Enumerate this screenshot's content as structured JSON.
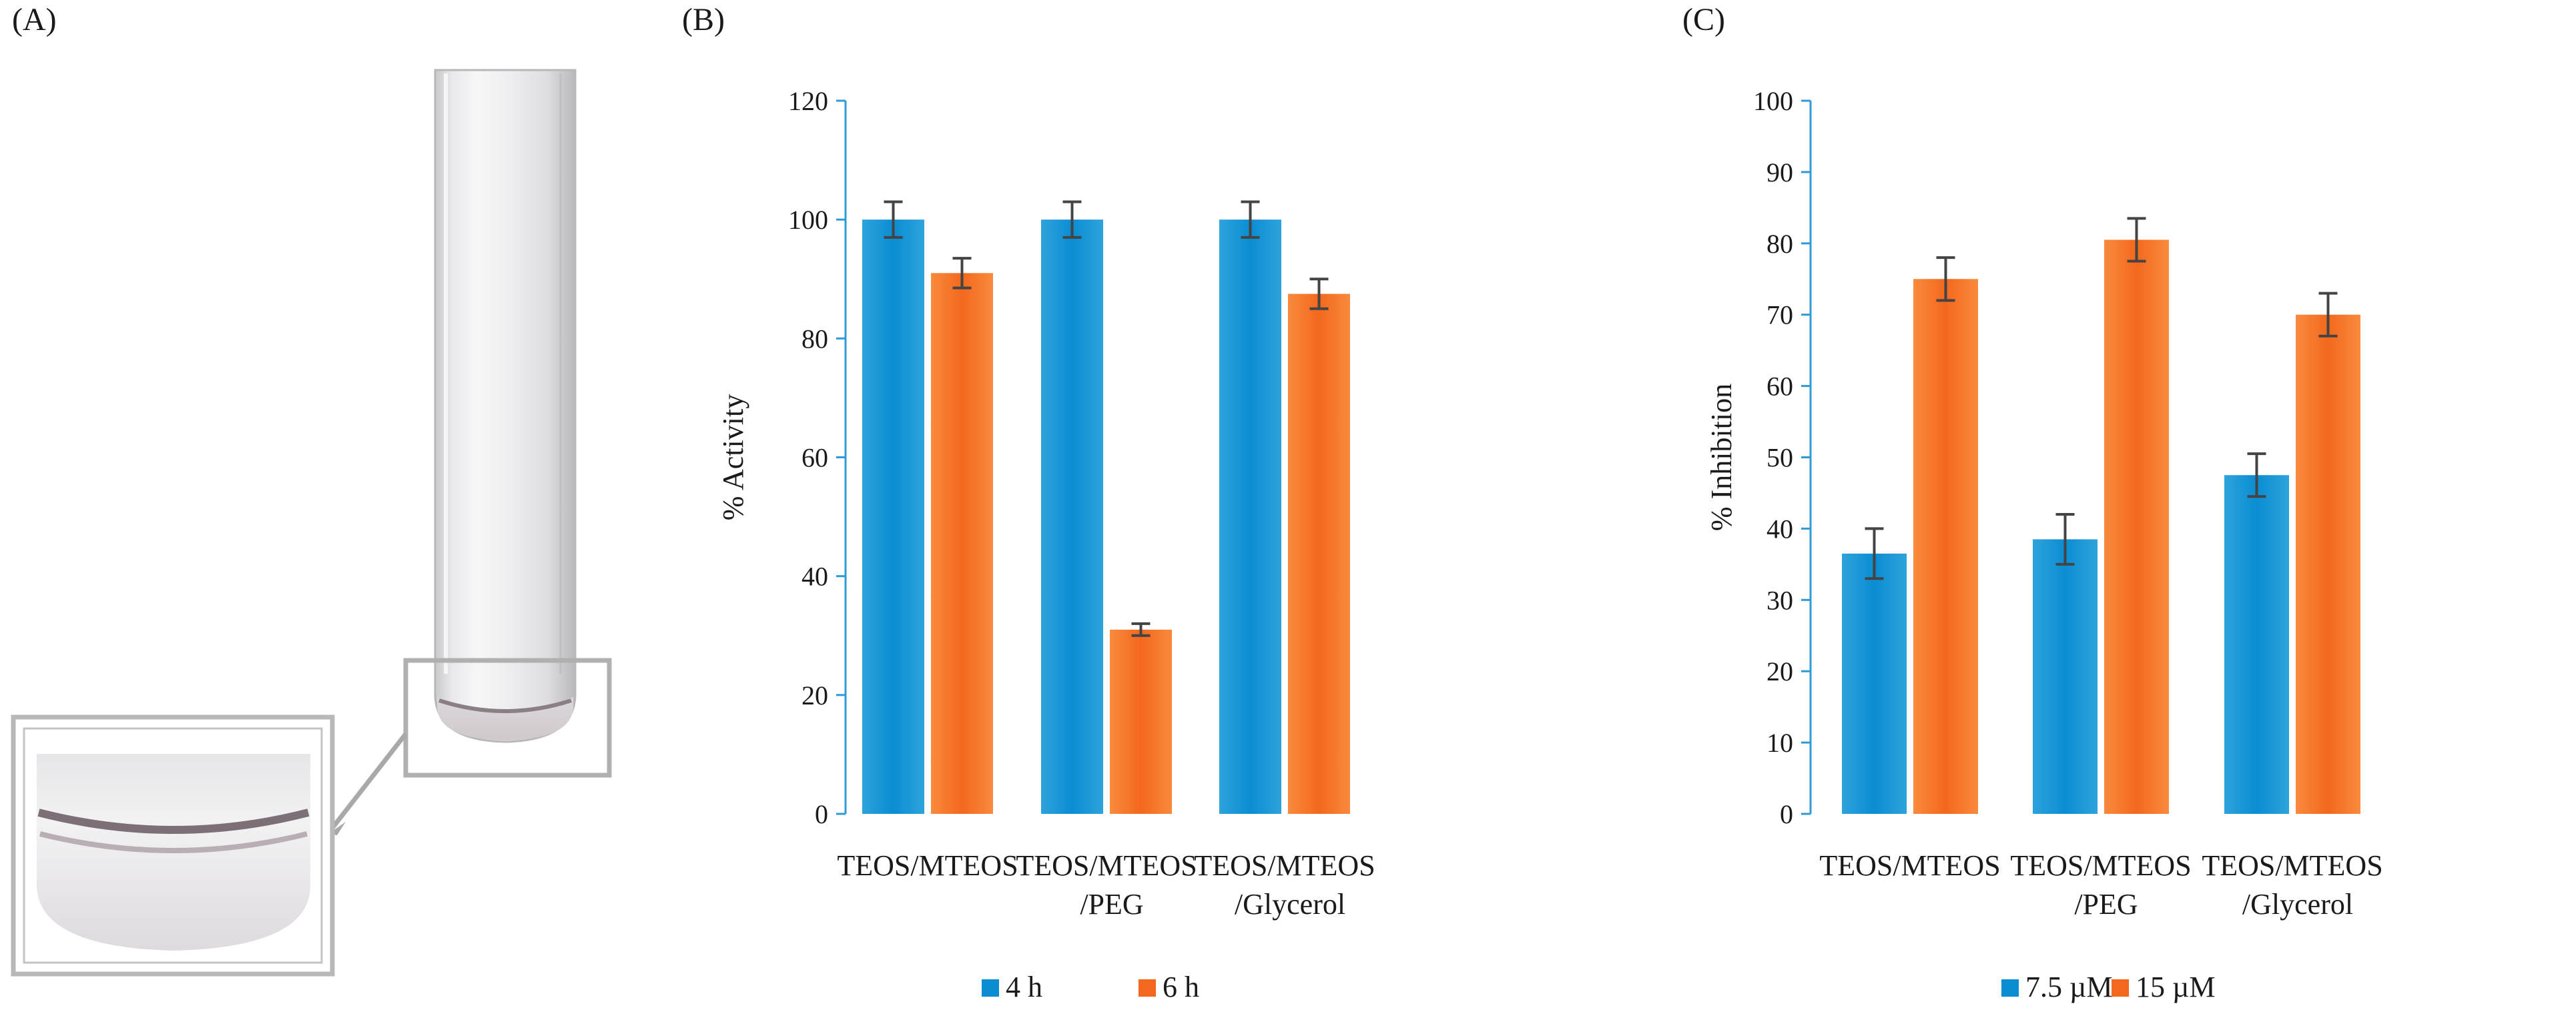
{
  "panels": {
    "a_label": "(A)",
    "b_label": "(B)",
    "c_label": "(C)"
  },
  "colors": {
    "blue": "#2ea3db",
    "blue_dark": "#0a8dd3",
    "orange": "#f98a3e",
    "orange_dark": "#f3681c",
    "axis": "#2e9bd6",
    "error": "#444444"
  },
  "chart_data": [
    {
      "id": "B",
      "type": "bar",
      "categories": [
        [
          "TEOS/MTEOS"
        ],
        [
          "TEOS/MTEOS",
          "/PEG"
        ],
        [
          "TEOS/MTEOS",
          "/Glycerol"
        ]
      ],
      "series": [
        {
          "name": "4 h",
          "values": [
            100,
            100,
            100
          ],
          "errors": [
            3,
            3,
            3
          ]
        },
        {
          "name": "6  h",
          "values": [
            91,
            31,
            87.5
          ],
          "errors": [
            2.5,
            1,
            2.5
          ]
        }
      ],
      "ylabel": "% Activity",
      "ylim": [
        0,
        120
      ],
      "yticks": [
        0,
        20,
        40,
        60,
        80,
        100,
        120
      ],
      "legend": "bottom"
    },
    {
      "id": "C",
      "type": "bar",
      "categories": [
        [
          "TEOS/MTEOS"
        ],
        [
          "TEOS/MTEOS",
          "/PEG"
        ],
        [
          "TEOS/MTEOS",
          "/Glycerol"
        ]
      ],
      "series": [
        {
          "name": "7.5 µM",
          "values": [
            36.5,
            38.5,
            47.5
          ],
          "errors": [
            3.5,
            3.5,
            3
          ]
        },
        {
          "name": "15 µM",
          "values": [
            75,
            80.5,
            70
          ],
          "errors": [
            3,
            3,
            3
          ]
        }
      ],
      "ylabel": "% Inhibition",
      "ylim": [
        0,
        100
      ],
      "yticks": [
        0,
        10,
        20,
        30,
        40,
        50,
        60,
        70,
        80,
        90,
        100
      ],
      "legend": "bottom"
    }
  ]
}
